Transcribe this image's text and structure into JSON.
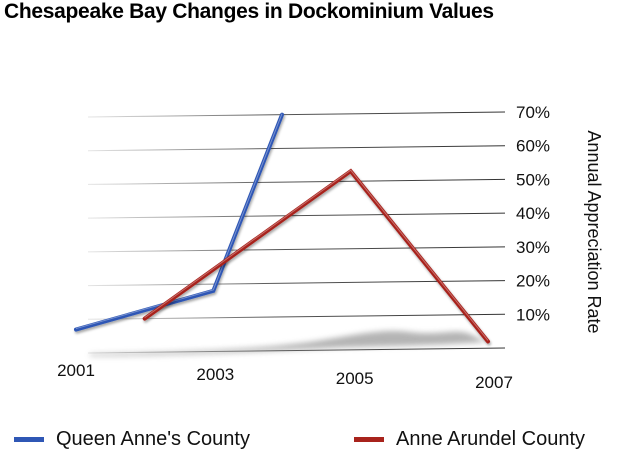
{
  "chart_data": {
    "type": "line",
    "title": "Chesapeake Bay Changes in Dockominium Values",
    "ylabel": "Annual Appreciation Rate",
    "xlabel": "",
    "x_ticks": [
      "2001",
      "2003",
      "2005",
      "2007"
    ],
    "y_ticks": [
      "10%",
      "20%",
      "30%",
      "40%",
      "50%",
      "60%",
      "70%"
    ],
    "ylim": [
      0,
      70
    ],
    "xlim": [
      2001,
      2007
    ],
    "grid": true,
    "legend_position": "bottom",
    "series": [
      {
        "name": "Queen Anne's County",
        "color": "#2f57b5",
        "points": [
          [
            2001,
            7
          ],
          [
            2003,
            18
          ],
          [
            2004,
            70
          ]
        ]
      },
      {
        "name": "Anne Arundel County",
        "color": "#a8231c",
        "points": [
          [
            2002,
            10
          ],
          [
            2005,
            53
          ],
          [
            2007,
            2
          ]
        ]
      }
    ]
  }
}
